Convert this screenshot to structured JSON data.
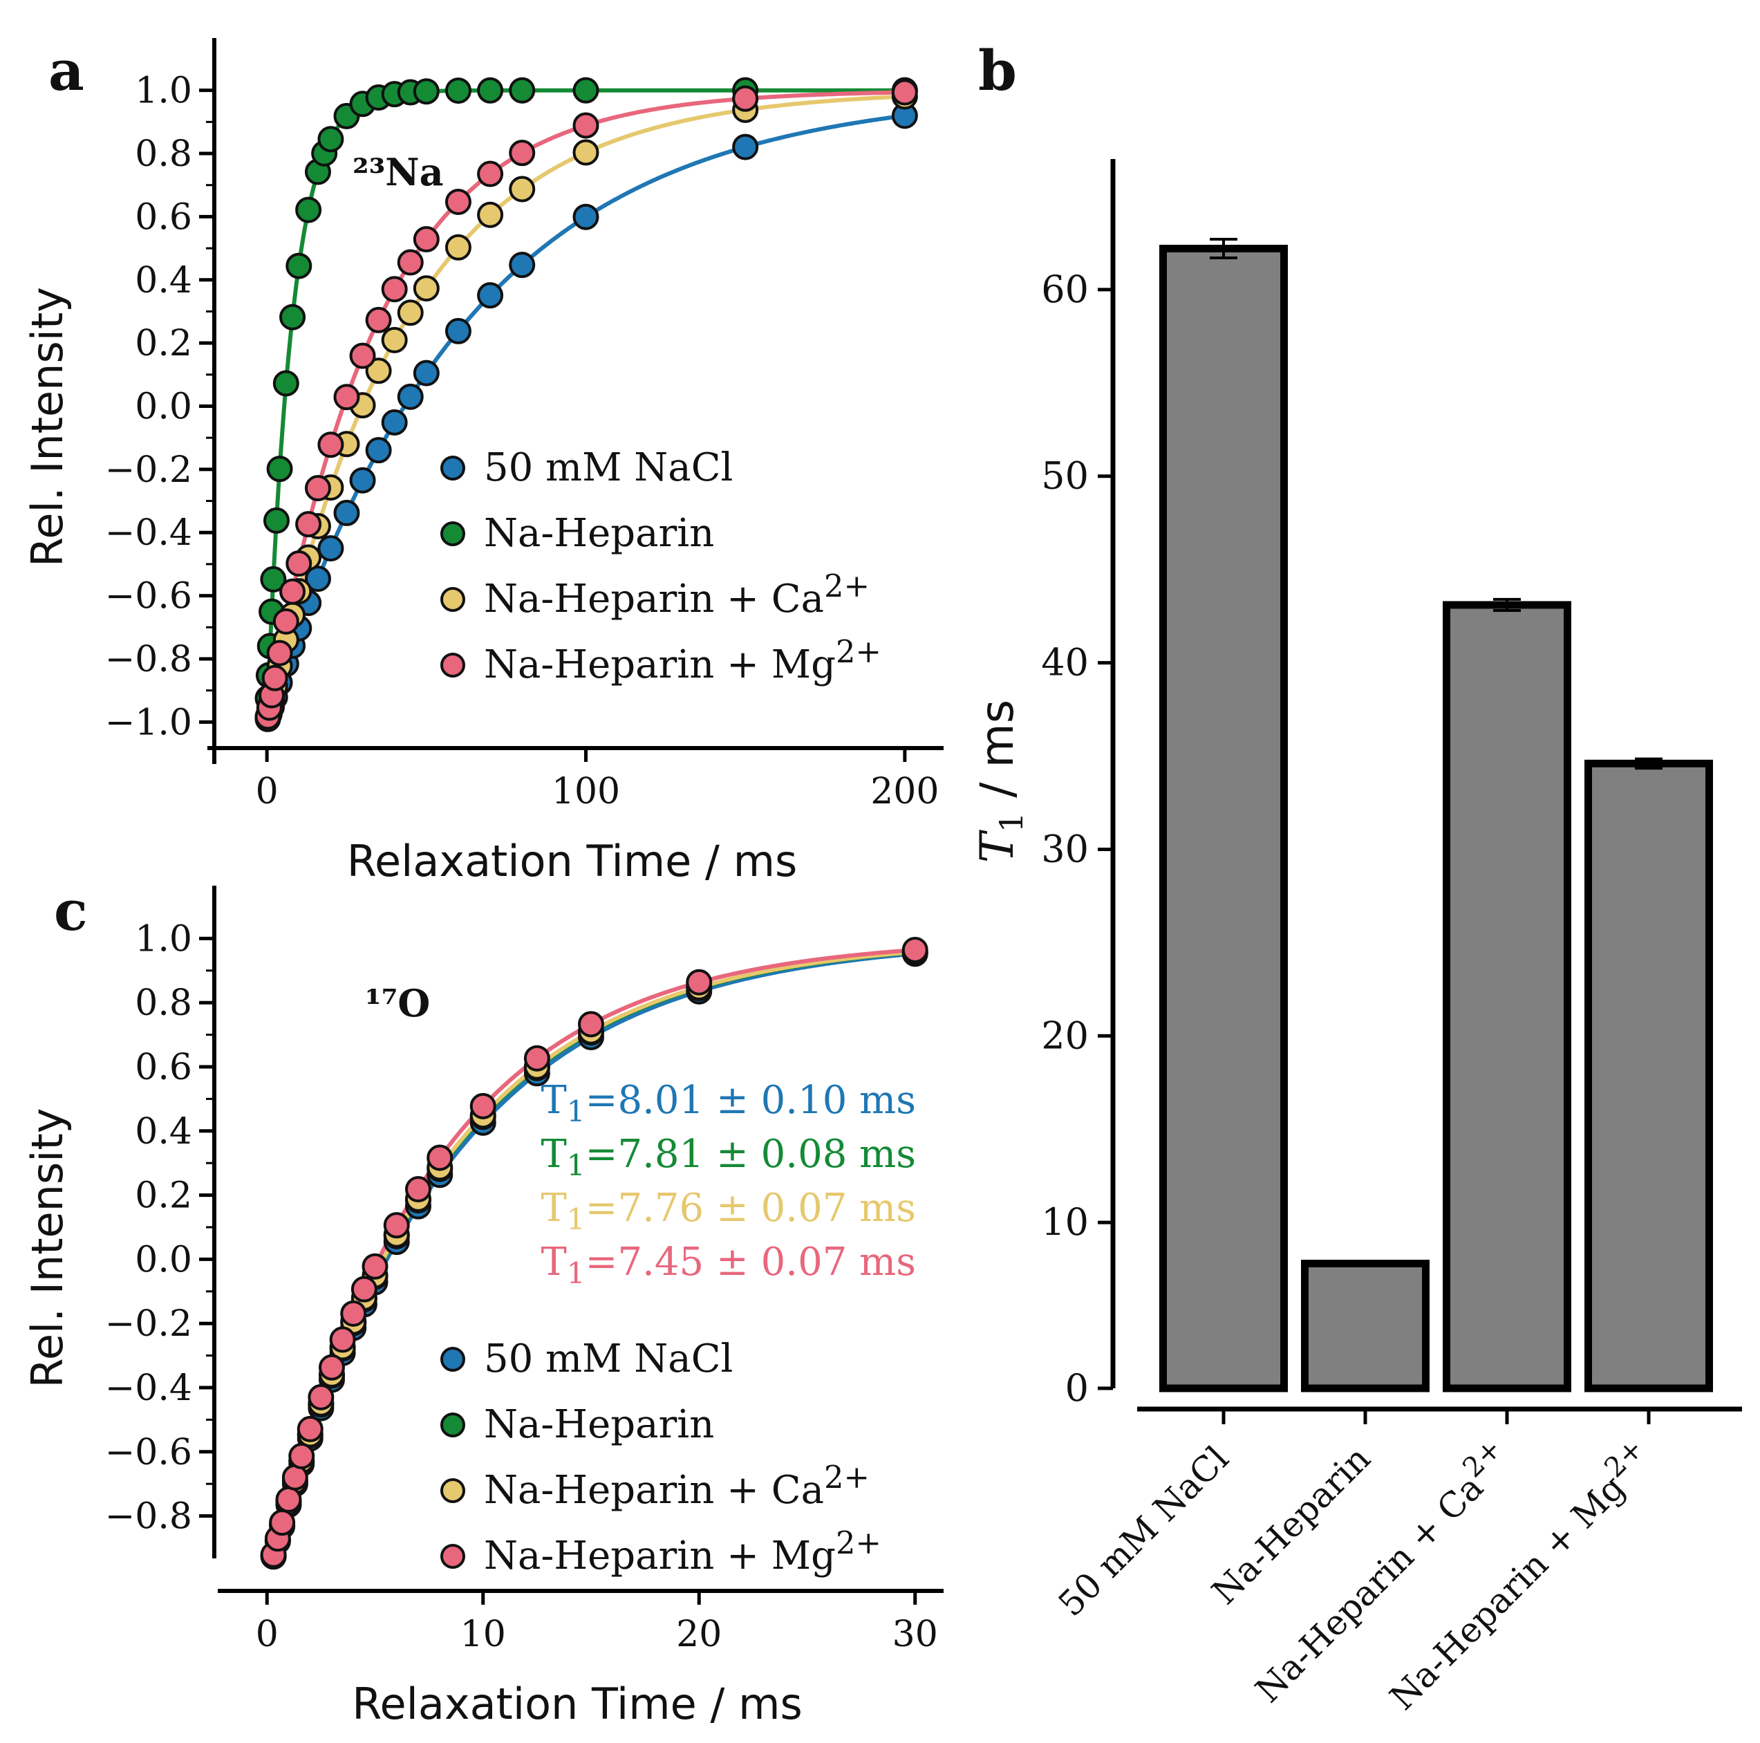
{
  "colors": {
    "blue": "#1f77b4",
    "green": "#148a35",
    "yellow": "#e6c86e",
    "pink": "#e8677d",
    "bar_fill": "#808080",
    "axis": "#000000"
  },
  "chart_data": [
    {
      "panel": "a",
      "type": "scatter",
      "nucleus_label": "²³Na",
      "xlabel": "Relaxation Time / ms",
      "ylabel": "Rel. Intensity",
      "xlim": [
        -10,
        210
      ],
      "ylim": [
        -1.1,
        1.1
      ],
      "xticks": [
        0,
        100,
        200
      ],
      "xtick_labels": [
        "0",
        "100",
        "200"
      ],
      "yticks": [
        -1.0,
        -0.8,
        -0.6,
        -0.4,
        -0.2,
        0.0,
        0.2,
        0.4,
        0.6,
        0.8,
        1.0
      ],
      "ytick_labels": [
        "−1.0",
        "−0.8",
        "−0.6",
        "−0.4",
        "−0.2",
        "0.0",
        "0.2",
        "0.4",
        "0.6",
        "0.8",
        "1.0"
      ],
      "legend_position": "lower-right",
      "x_long": [
        0.3,
        0.8,
        1.5,
        2.5,
        4,
        6,
        8,
        10,
        13,
        16,
        20,
        25,
        30,
        35,
        40,
        45,
        50,
        60,
        70,
        80,
        100,
        150,
        200
      ],
      "x_short": [
        0.3,
        0.6,
        1,
        1.5,
        2,
        3,
        4,
        6,
        8,
        10,
        13,
        16,
        18,
        20,
        25,
        30,
        35,
        40,
        45,
        50,
        60,
        70,
        80,
        100,
        150,
        200
      ],
      "series": [
        {
          "name": "50 mM NaCl",
          "color_key": "blue",
          "t1": 62.2,
          "grid": "long"
        },
        {
          "name": "Na-Heparin",
          "color_key": "green",
          "t1": 7.81,
          "grid": "short"
        },
        {
          "name": "Na-Heparin + Ca",
          "superscript": "2+",
          "color_key": "yellow",
          "t1": 43.1,
          "grid": "long"
        },
        {
          "name": "Na-Heparin + Mg",
          "superscript": "2+",
          "color_key": "pink",
          "t1": 34.6,
          "grid": "long"
        }
      ]
    },
    {
      "panel": "b",
      "type": "bar",
      "ylabel_symbol": "T",
      "ylabel_subscript": "1",
      "ylabel_unit": " / ms",
      "ylim": [
        0,
        67
      ],
      "yticks": [
        0,
        10,
        20,
        30,
        40,
        50,
        60
      ],
      "ytick_labels": [
        "0",
        "10",
        "20",
        "30",
        "40",
        "50",
        "60"
      ],
      "categories": [
        {
          "name": "50 mM NaCl",
          "sup": ""
        },
        {
          "name": "Na-Heparin",
          "sup": ""
        },
        {
          "name": "Na-Heparin + Ca",
          "sup": "2+"
        },
        {
          "name": "Na-Heparin + Mg",
          "sup": "2+"
        }
      ],
      "values": [
        62.2,
        7.8,
        43.1,
        34.6
      ],
      "errors": [
        0.5,
        0.1,
        0.3,
        0.25
      ]
    },
    {
      "panel": "c",
      "type": "scatter",
      "nucleus_label": "¹⁷O",
      "xlabel": "Relaxation Time / ms",
      "ylabel": "Rel. Intensity",
      "xlim": [
        -1,
        31
      ],
      "ylim": [
        -0.9,
        1.1
      ],
      "xticks": [
        0,
        10,
        20,
        30
      ],
      "xtick_labels": [
        "0",
        "10",
        "20",
        "30"
      ],
      "yticks": [
        -0.8,
        -0.6,
        -0.4,
        -0.2,
        0.0,
        0.2,
        0.4,
        0.6,
        0.8,
        1.0
      ],
      "ytick_labels": [
        "−0.8",
        "−0.6",
        "−0.4",
        "−0.2",
        "0.0",
        "0.2",
        "0.4",
        "0.6",
        "0.8",
        "1.0"
      ],
      "legend_position": "lower-right",
      "x": [
        0.3,
        0.5,
        0.7,
        1,
        1.3,
        1.6,
        2,
        2.5,
        3,
        3.5,
        4,
        4.5,
        5,
        6,
        7,
        8,
        10,
        12.5,
        15,
        20,
        30
      ],
      "series": [
        {
          "name": "50 mM NaCl",
          "color_key": "blue",
          "t1": 8.01,
          "t1_text": "=8.01 ± 0.10 ms"
        },
        {
          "name": "Na-Heparin",
          "color_key": "green",
          "t1": 7.81,
          "t1_text": "=7.81 ± 0.08 ms"
        },
        {
          "name": "Na-Heparin + Ca",
          "superscript": "2+",
          "color_key": "yellow",
          "t1": 7.76,
          "t1_text": "=7.76 ± 0.07 ms"
        },
        {
          "name": "Na-Heparin + Mg",
          "superscript": "2+",
          "color_key": "pink",
          "t1": 7.45,
          "t1_text": "=7.45 ± 0.07 ms"
        }
      ],
      "t1_symbol": "T",
      "t1_subscript": "1"
    }
  ],
  "panel_labels": {
    "a": "a",
    "b": "b",
    "c": "c"
  }
}
